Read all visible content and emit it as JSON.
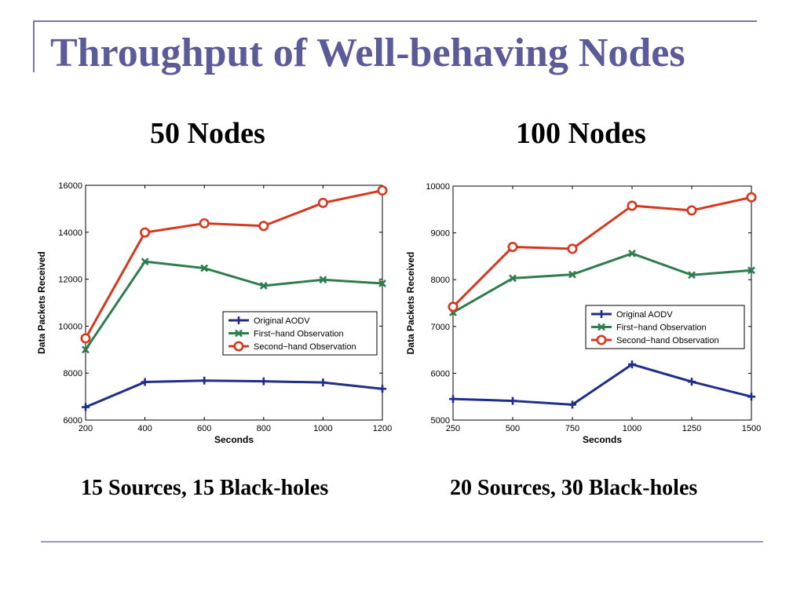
{
  "slide": {
    "title": "Throughput of Well-behaving Nodes"
  },
  "panels": [
    {
      "heading": "50 Nodes",
      "caption": "15 Sources, 15 Black-holes"
    },
    {
      "heading": "100 Nodes",
      "caption": "20 Sources, 30 Black-holes"
    }
  ],
  "colors": {
    "original": "#1f2e8a",
    "first": "#2e7d4f",
    "second": "#d7371f",
    "title": "#5b5b99"
  },
  "chart_data": [
    {
      "type": "line",
      "title": "",
      "xlabel": "Seconds",
      "ylabel": "Data Packets Received",
      "x": [
        200,
        400,
        600,
        800,
        1000,
        1200
      ],
      "xlim": [
        200,
        1200
      ],
      "ylim": [
        6000,
        16000
      ],
      "xticks": [
        200,
        400,
        600,
        800,
        1000,
        1200
      ],
      "yticks": [
        6000,
        8000,
        10000,
        12000,
        14000,
        16000
      ],
      "legend_position": "center-right",
      "grid": false,
      "series": [
        {
          "name": "Original AODV",
          "marker": "plus",
          "values": [
            6550,
            7620,
            7680,
            7650,
            7600,
            7330
          ]
        },
        {
          "name": "First−hand Observation",
          "marker": "x",
          "values": [
            9000,
            12750,
            12470,
            11720,
            11980,
            11820
          ]
        },
        {
          "name": "Second−hand Observation",
          "marker": "circle",
          "values": [
            9480,
            13990,
            14380,
            14270,
            15250,
            15780
          ]
        }
      ]
    },
    {
      "type": "line",
      "title": "",
      "xlabel": "Seconds",
      "ylabel": "Data Packets Received",
      "x": [
        250,
        500,
        750,
        1000,
        1250,
        1500
      ],
      "xlim": [
        250,
        1500
      ],
      "ylim": [
        5000,
        10000
      ],
      "xticks": [
        250,
        500,
        750,
        1000,
        1250,
        1500
      ],
      "yticks": [
        5000,
        6000,
        7000,
        8000,
        9000,
        10000
      ],
      "legend_position": "center-right",
      "grid": false,
      "series": [
        {
          "name": "Original AODV",
          "marker": "plus",
          "values": [
            5450,
            5410,
            5330,
            6190,
            5820,
            5500
          ]
        },
        {
          "name": "First−hand Observation",
          "marker": "x",
          "values": [
            7300,
            8030,
            8110,
            8560,
            8100,
            8200
          ]
        },
        {
          "name": "Second−hand Observation",
          "marker": "circle",
          "values": [
            7420,
            8700,
            8660,
            9580,
            9480,
            9760
          ]
        }
      ]
    }
  ]
}
